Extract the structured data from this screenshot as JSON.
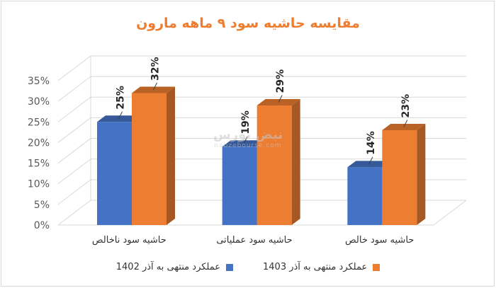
{
  "chart_data": {
    "type": "bar",
    "title": "مقایسه حاشیه سود ۹ ماهه مارون",
    "categories": [
      "حاشیه سود ناخالص",
      "حاشیه سود عملیاتی",
      "حاشیه سود خالص"
    ],
    "series": [
      {
        "name": "عملکرد منتهی به آذر 1402",
        "values": [
          25,
          19,
          14
        ],
        "labels": [
          "25%",
          "19%",
          "14%"
        ],
        "color": "#4472c4"
      },
      {
        "name": "عملکرد منتهی به آذر 1403",
        "values": [
          32,
          29,
          23
        ],
        "labels": [
          "32%",
          "29%",
          "23%"
        ],
        "color": "#ed7d31"
      }
    ],
    "ylim": [
      0,
      35
    ],
    "yticks": [
      "0%",
      "5%",
      "10%",
      "15%",
      "20%",
      "25%",
      "30%",
      "35%"
    ],
    "grid": true,
    "legend": "bottom",
    "style": "3d-column"
  },
  "watermark": {
    "main": "نبض بورس",
    "sub": "nabzebourse.com"
  }
}
